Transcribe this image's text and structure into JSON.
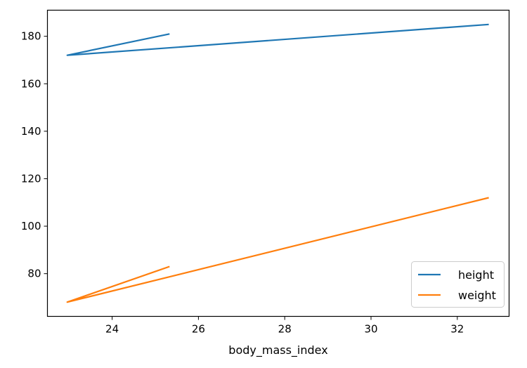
{
  "chart_data": {
    "type": "line",
    "title": "",
    "xlabel": "body_mass_index",
    "ylabel": "",
    "xlim": [
      22.5,
      33.2
    ],
    "ylim": [
      62,
      191
    ],
    "xticks": [
      24,
      26,
      28,
      30,
      32
    ],
    "yticks": [
      80,
      100,
      120,
      140,
      160,
      180
    ],
    "x": [
      25.33,
      22.96,
      32.73
    ],
    "series": [
      {
        "name": "height",
        "color": "#1f77b4",
        "values": [
          181,
          172,
          185
        ]
      },
      {
        "name": "weight",
        "color": "#ff7f0e",
        "values": [
          83,
          68,
          112
        ]
      }
    ],
    "legend": "lower-right",
    "grid": false
  }
}
